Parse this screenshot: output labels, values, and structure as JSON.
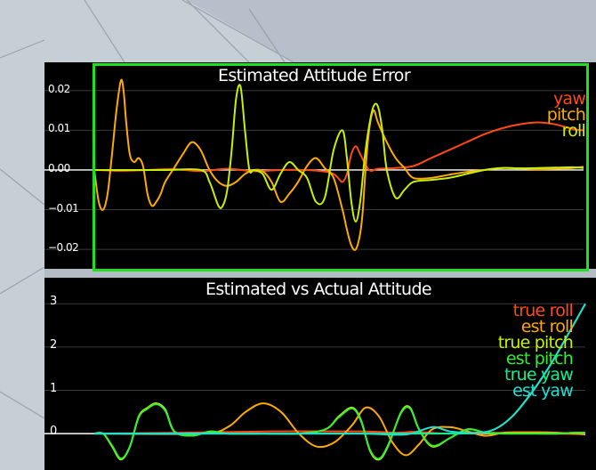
{
  "colors": {
    "background_floor": "#c6ced6",
    "background_sky": "#b3bbc4",
    "panel_bg": "#000000",
    "highlight_border": "#20e020",
    "grid": "#3a3a3a",
    "zero_line": "#ffffff"
  },
  "chart_data": [
    {
      "type": "line",
      "title": "Estimated Attitude Error",
      "ylim": [
        -0.024,
        0.026
      ],
      "yticks": [
        "0.02",
        "0.01",
        "0.00",
        "−0.01",
        "−0.02"
      ],
      "ytick_values": [
        0.02,
        0.01,
        0.0,
        -0.01,
        -0.02
      ],
      "grid": true,
      "legend_position": "top-right",
      "series": [
        {
          "name": "yaw",
          "color": "#ff4a14",
          "x": [
            0,
            30,
            60,
            90,
            120,
            150,
            180,
            210,
            240,
            260,
            270,
            275,
            280,
            285,
            290,
            295,
            300,
            310,
            320,
            340,
            360,
            380,
            400,
            420,
            440,
            460,
            480,
            500,
            520,
            540,
            552
          ],
          "values": [
            0,
            -0.0002,
            0,
            0.0002,
            -0.0003,
            0.0003,
            -0.0003,
            0,
            0,
            -0.0004,
            -0.001,
            -0.002,
            -0.003,
            -0.001,
            0.004,
            0.006,
            0.004,
            0.0,
            0.0003,
            0.0005,
            0.001,
            0.003,
            0.005,
            0.007,
            0.009,
            0.0105,
            0.0115,
            0.012,
            0.0115,
            0.0103,
            0.01
          ]
        },
        {
          "name": "pitch",
          "color": "#ffaa00",
          "x": [
            0,
            5,
            10,
            15,
            20,
            25,
            30,
            33,
            36,
            40,
            45,
            50,
            55,
            60,
            65,
            70,
            75,
            80,
            90,
            100,
            110,
            120,
            130,
            140,
            150,
            160,
            170,
            180,
            190,
            200,
            210,
            220,
            230,
            240,
            250,
            260,
            270,
            280,
            285,
            290,
            295,
            300,
            303,
            306,
            310,
            315,
            320,
            330,
            340,
            350,
            360,
            380,
            400,
            420,
            440,
            460,
            480,
            500,
            520,
            540,
            552
          ],
          "values": [
            0,
            -0.008,
            -0.01,
            -0.006,
            0.004,
            0.015,
            0.0225,
            0.02,
            0.012,
            0.004,
            0.002,
            0.003,
            0.001,
            -0.006,
            -0.009,
            -0.008,
            -0.006,
            -0.003,
            0.0005,
            0.004,
            0.007,
            0.005,
            0.0,
            -0.003,
            -0.004,
            -0.003,
            -0.001,
            0.0,
            -0.0003,
            -0.003,
            -0.008,
            -0.006,
            -0.003,
            0.001,
            0.003,
            0.0005,
            -0.002,
            -0.01,
            -0.015,
            -0.019,
            -0.02,
            -0.016,
            -0.01,
            0.0,
            0.01,
            0.015,
            0.012,
            0.007,
            0.003,
            0.0005,
            -0.002,
            -0.002,
            -0.0012,
            -0.0005,
            0.0,
            0.0005,
            0.0004,
            0.0002,
            0.0003,
            0.0005,
            0.0008
          ]
        },
        {
          "name": "roll",
          "color": "#c8f000",
          "x": [
            0,
            40,
            80,
            120,
            130,
            140,
            145,
            150,
            155,
            160,
            165,
            170,
            175,
            180,
            190,
            200,
            210,
            220,
            230,
            240,
            250,
            260,
            270,
            280,
            285,
            290,
            295,
            300,
            305,
            310,
            315,
            320,
            325,
            330,
            340,
            350,
            360,
            380,
            400,
            420,
            440,
            460,
            480,
            500,
            520,
            540,
            552
          ],
          "values": [
            0,
            0,
            0,
            0,
            -0.003,
            -0.009,
            -0.009,
            -0.005,
            0.005,
            0.018,
            0.021,
            0.01,
            0.0,
            0.0,
            -0.001,
            -0.005,
            -0.001,
            0.002,
            0.0,
            -0.002,
            -0.008,
            -0.007,
            0.005,
            0.01,
            0.003,
            -0.008,
            -0.013,
            -0.008,
            0.003,
            0.011,
            0.016,
            0.016,
            0.01,
            0.0,
            -0.007,
            -0.005,
            -0.003,
            -0.0025,
            -0.002,
            -0.001,
            0.0,
            0.0005,
            0.0004,
            0.0005,
            0.0006,
            0.0007,
            0.0005
          ]
        }
      ]
    },
    {
      "type": "line",
      "title": "Estimated vs Actual Attitude",
      "ylim": [
        -0.8,
        3.5
      ],
      "yticks": [
        "3",
        "2",
        "1",
        "0"
      ],
      "ytick_values": [
        3,
        2,
        1,
        0
      ],
      "grid": true,
      "legend_position": "top-right",
      "series": [
        {
          "name": "true roll",
          "color": "#ff4a14",
          "x": [
            0,
            100,
            200,
            300,
            340,
            360,
            400,
            450,
            500,
            552
          ],
          "values": [
            0,
            0.02,
            0.05,
            0.05,
            0.02,
            0.04,
            0.0,
            0.02,
            0.0,
            -0.01
          ]
        },
        {
          "name": "est roll",
          "color": "#ffaa00",
          "x": [
            0,
            120,
            150,
            170,
            190,
            210,
            230,
            250,
            270,
            290,
            305,
            320,
            335,
            350,
            365,
            380,
            400,
            420,
            440,
            460,
            480,
            500,
            520,
            540,
            552
          ],
          "values": [
            0,
            0.0,
            0.15,
            0.5,
            0.7,
            0.5,
            0.0,
            -0.3,
            -0.2,
            0.2,
            0.6,
            0.4,
            -0.2,
            -0.5,
            -0.25,
            0.1,
            0.15,
            0.05,
            -0.05,
            0.02,
            0.03,
            0.03,
            0.02,
            0.0,
            -0.02
          ]
        },
        {
          "name": "true pitch",
          "color": "#c8f000",
          "x": [
            0,
            10,
            20,
            30,
            40,
            50,
            60,
            70,
            80,
            90,
            110,
            130,
            150,
            190,
            230,
            260,
            275,
            290,
            300,
            310,
            320,
            330,
            345,
            355,
            365,
            380,
            400,
            420,
            440,
            460,
            480,
            500,
            520,
            540,
            552
          ],
          "values": [
            0,
            0.0,
            -0.3,
            -0.6,
            -0.3,
            0.4,
            0.6,
            0.7,
            0.55,
            0.05,
            -0.05,
            0.05,
            0.0,
            0.0,
            0.0,
            0.1,
            0.4,
            0.6,
            0.3,
            -0.4,
            -0.6,
            -0.3,
            0.5,
            0.6,
            0.1,
            -0.3,
            -0.1,
            0.1,
            0.02,
            0.0,
            0.0,
            0.0,
            0.0,
            0.02,
            0.02
          ]
        },
        {
          "name": "est pitch",
          "color": "#30f030",
          "x": [
            0,
            10,
            20,
            30,
            40,
            50,
            60,
            70,
            80,
            90,
            110,
            130,
            150,
            190,
            230,
            260,
            275,
            290,
            300,
            310,
            320,
            330,
            345,
            355,
            365,
            380,
            400,
            420,
            440,
            460,
            480,
            500,
            520,
            540,
            552
          ],
          "values": [
            0,
            0.0,
            -0.28,
            -0.58,
            -0.3,
            0.38,
            0.58,
            0.68,
            0.52,
            0.05,
            -0.05,
            0.05,
            0.0,
            0.0,
            0.0,
            0.1,
            0.38,
            0.58,
            0.28,
            -0.38,
            -0.58,
            -0.28,
            0.48,
            0.58,
            0.1,
            -0.28,
            -0.1,
            0.1,
            0.02,
            0.0,
            0.0,
            0.0,
            0.0,
            0.02,
            0.02
          ]
        },
        {
          "name": "true yaw",
          "color": "#10f090",
          "x": [
            0,
            100,
            200,
            300,
            400,
            430,
            450,
            470,
            490,
            510,
            530,
            552
          ],
          "values": [
            0,
            0.0,
            0.0,
            0.0,
            0.0,
            0.02,
            0.1,
            0.4,
            0.9,
            1.5,
            2.2,
            3.0
          ]
        },
        {
          "name": "est yaw",
          "color": "#20e0d0",
          "x": [
            0,
            100,
            200,
            300,
            350,
            380,
            400,
            430,
            450,
            470,
            490,
            510,
            530,
            552
          ],
          "values": [
            0,
            0.0,
            0.0,
            0.0,
            -0.02,
            0.15,
            0.05,
            0.02,
            0.1,
            0.4,
            0.9,
            1.5,
            2.2,
            3.0
          ]
        }
      ]
    }
  ]
}
